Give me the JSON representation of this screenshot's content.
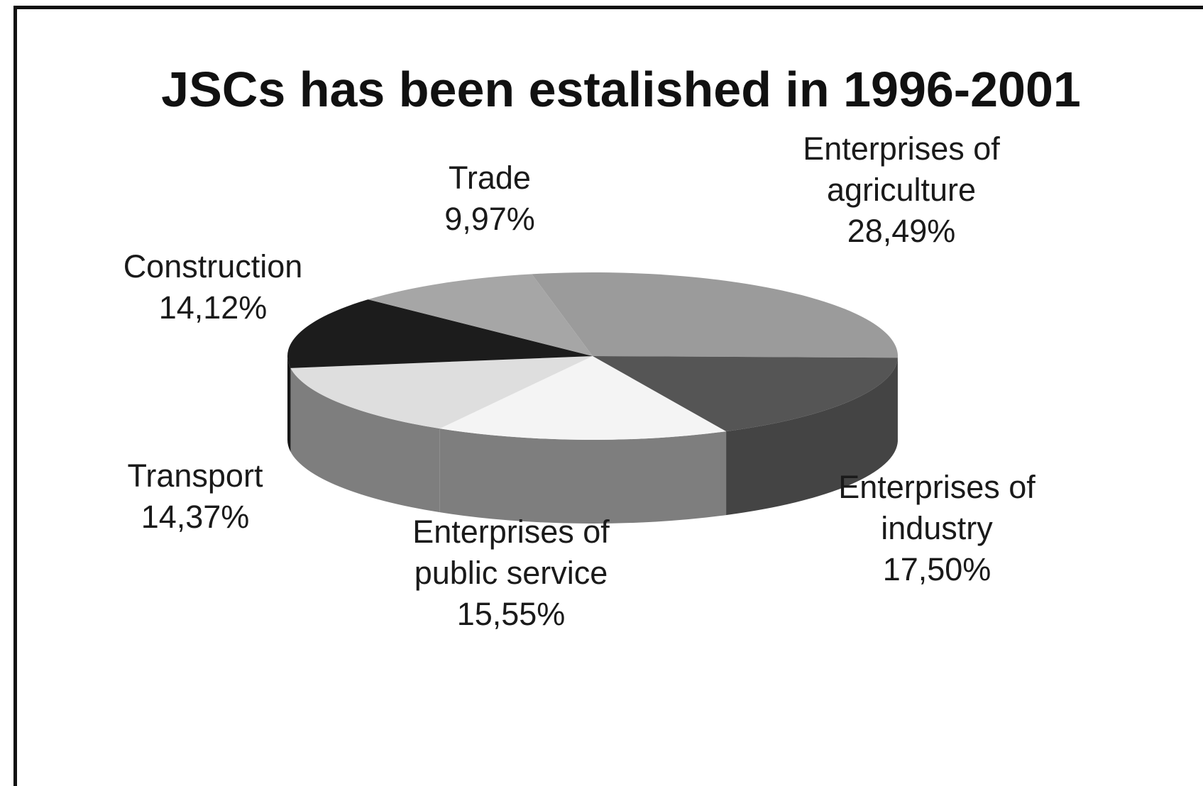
{
  "chart_data": {
    "type": "pie",
    "title": "JSCs has been estalished in 1996-2001",
    "slices": [
      {
        "label_lines": [
          "Enterprises of",
          "agriculture"
        ],
        "value_text": "28,49%",
        "value": 28.49,
        "color": "#9b9b9b"
      },
      {
        "label_lines": [
          "Enterprises of",
          "industry"
        ],
        "value_text": "17,50%",
        "value": 17.5,
        "color": "#555555"
      },
      {
        "label_lines": [
          "Enterprises of",
          "public service"
        ],
        "value_text": "15,55%",
        "value": 15.55,
        "color": "#f4f4f4"
      },
      {
        "label_lines": [
          "Transport"
        ],
        "value_text": "14,37%",
        "value": 14.37,
        "color": "#dedede"
      },
      {
        "label_lines": [
          "Construction"
        ],
        "value_text": "14,12%",
        "value": 14.12,
        "color": "#1c1c1c"
      },
      {
        "label_lines": [
          "Trade"
        ],
        "value_text": "9,97%",
        "value": 9.97,
        "color": "#a6a6a6"
      }
    ],
    "style": "3d",
    "legend": "none",
    "grid": false
  }
}
